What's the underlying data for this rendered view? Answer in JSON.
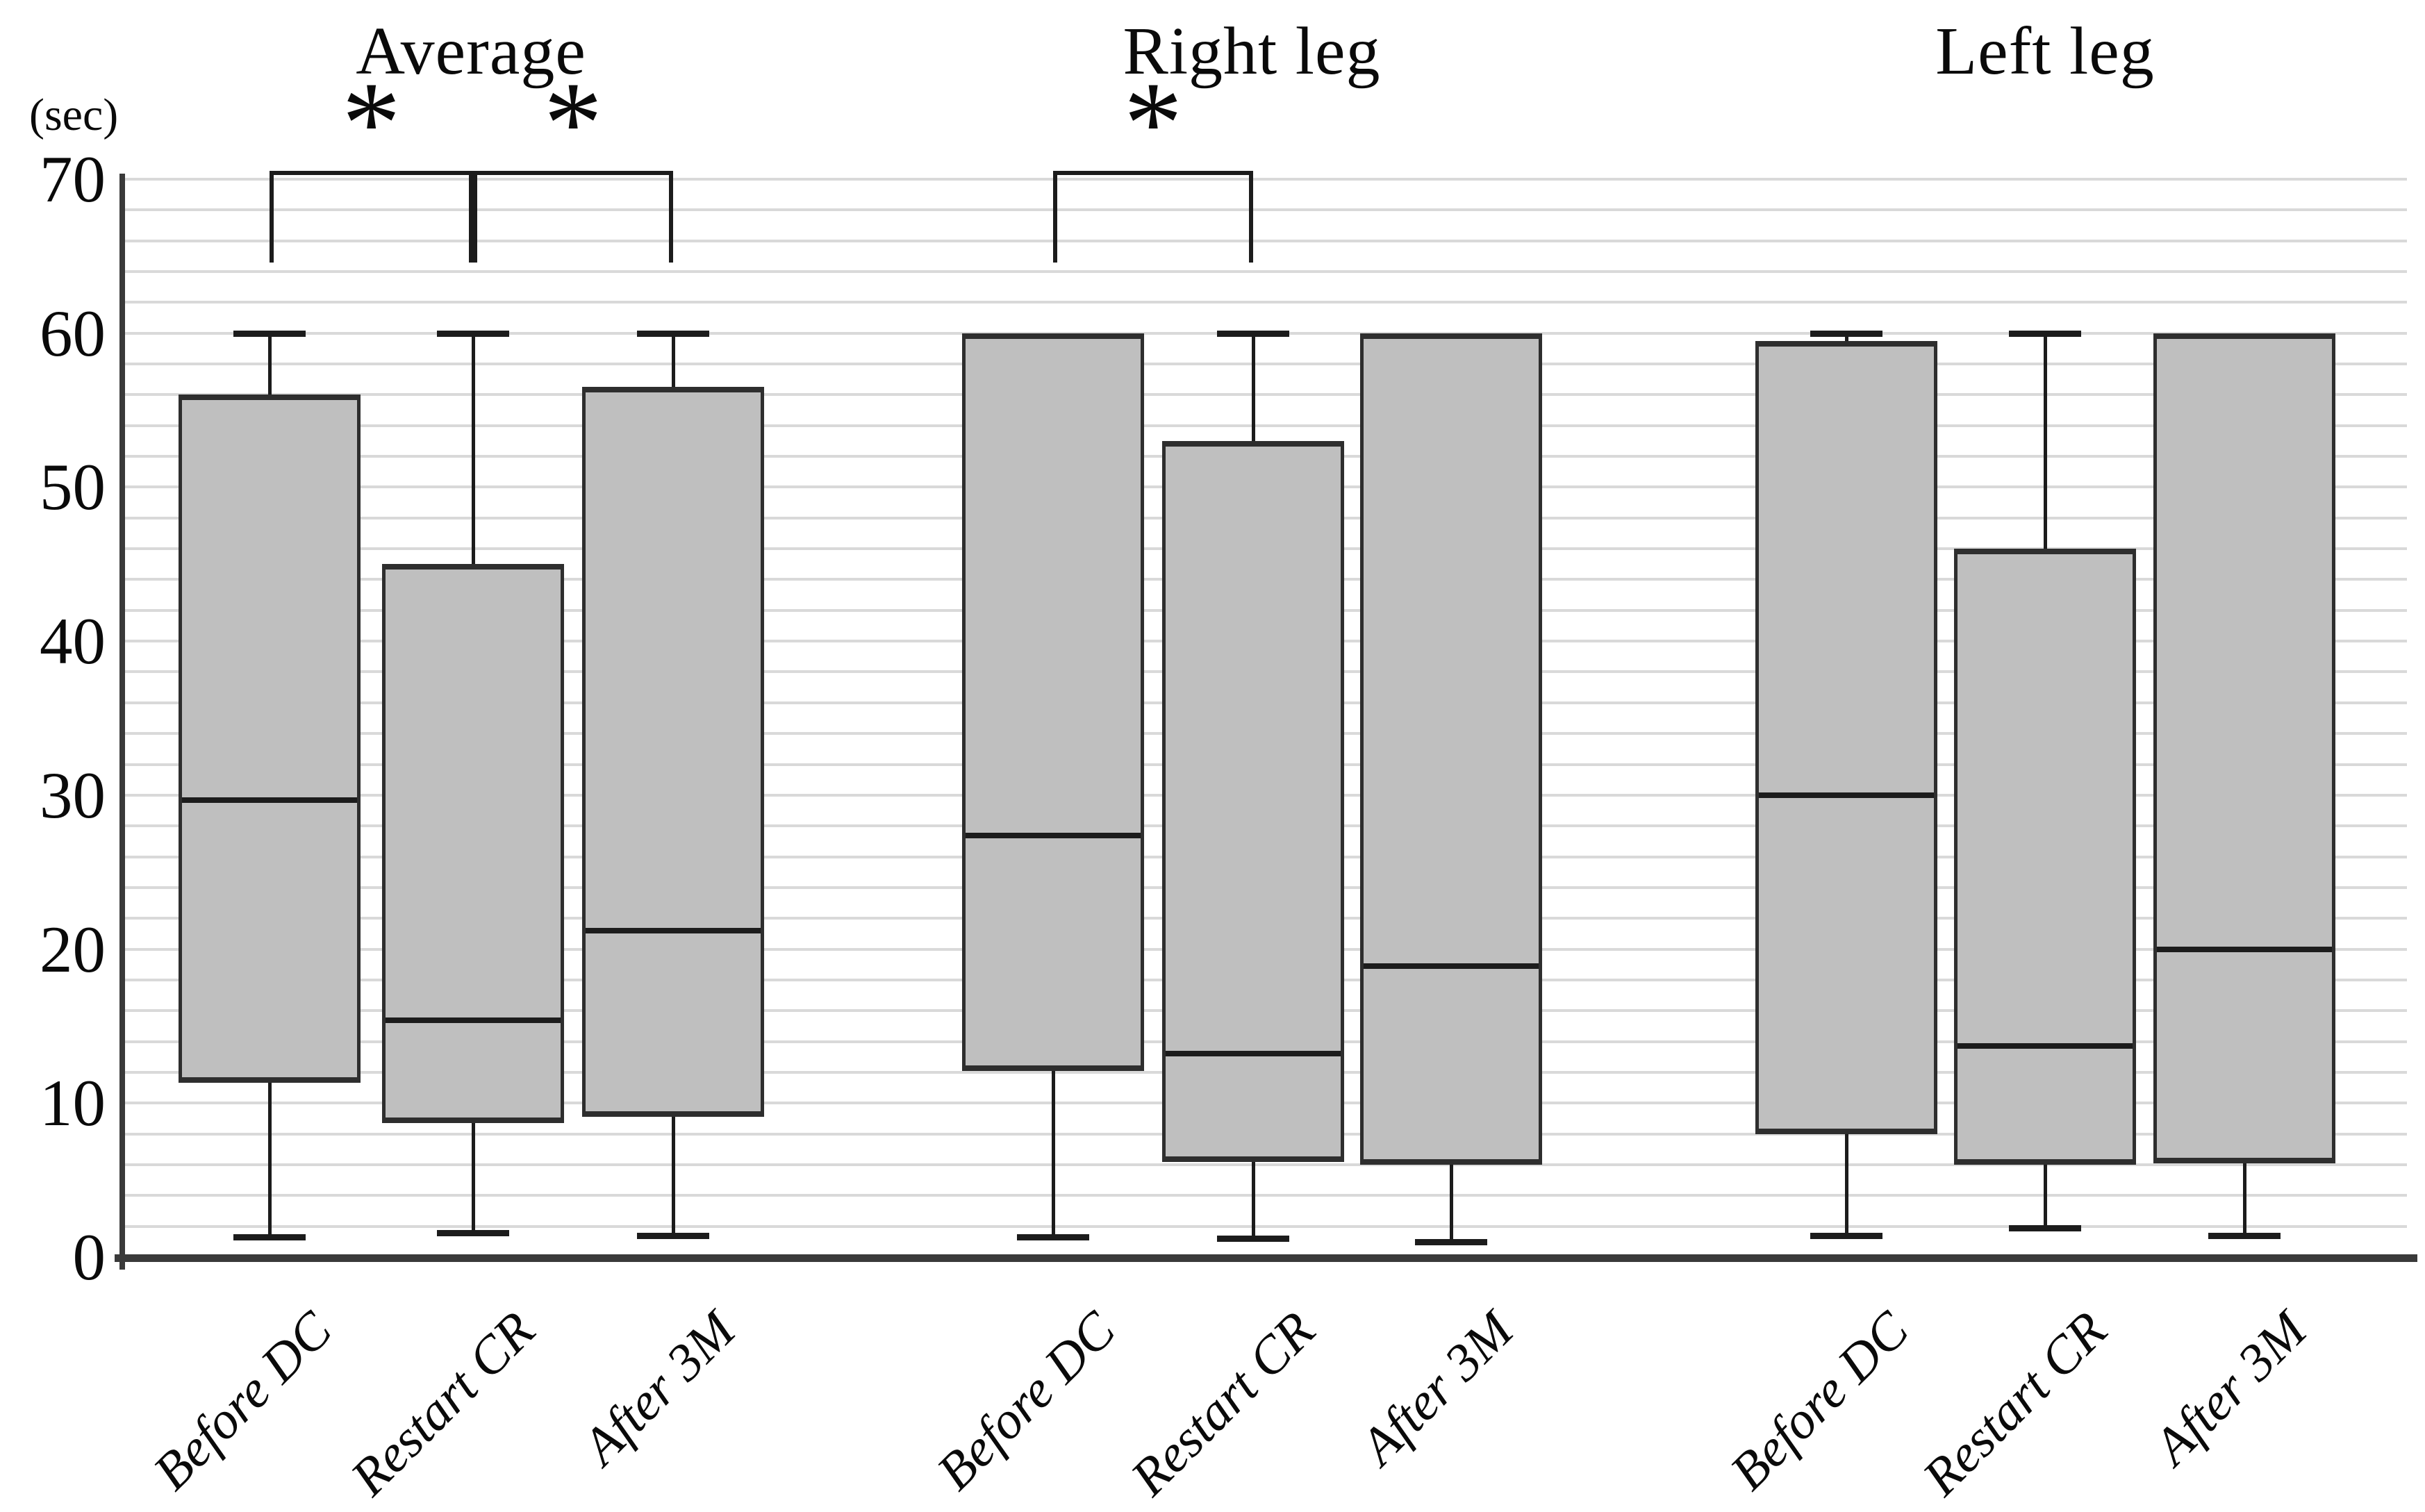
{
  "chart_data": {
    "type": "boxplot",
    "unit_label": "(sec)",
    "ylabel": "",
    "xlabel": "",
    "ylim": [
      0,
      70
    ],
    "yticks": [
      0,
      10,
      20,
      30,
      40,
      50,
      60,
      70
    ],
    "minor_gridline_step": 2,
    "grid": "on",
    "categories": [
      "Before DC",
      "Restart CR",
      "After 3M"
    ],
    "groups": [
      {
        "title": "Average",
        "boxes": [
          {
            "label": "Before DC",
            "whisker_high": 60,
            "q3": 56.0,
            "median": 29.7,
            "q1": 11.3,
            "whisker_low": 1.3
          },
          {
            "label": "Restart CR",
            "whisker_high": 60,
            "q3": 45.0,
            "median": 15.4,
            "q1": 8.7,
            "whisker_low": 1.6
          },
          {
            "label": "After 3M",
            "whisker_high": 60,
            "q3": 56.5,
            "median": 21.2,
            "q1": 9.1,
            "whisker_low": 1.4
          }
        ]
      },
      {
        "title": "Right leg",
        "boxes": [
          {
            "label": "Before DC",
            "whisker_high": 60,
            "q3": 60.0,
            "median": 27.4,
            "q1": 12.1,
            "whisker_low": 1.3
          },
          {
            "label": "Restart CR",
            "whisker_high": 60,
            "q3": 53.0,
            "median": 13.2,
            "q1": 6.2,
            "whisker_low": 1.2
          },
          {
            "label": "After 3M",
            "whisker_high": 60,
            "q3": 60.0,
            "median": 18.9,
            "q1": 6.0,
            "whisker_low": 1.0
          }
        ]
      },
      {
        "title": "Left leg",
        "boxes": [
          {
            "label": "Before DC",
            "whisker_high": 60,
            "q3": 59.5,
            "median": 30.0,
            "q1": 8.0,
            "whisker_low": 1.4
          },
          {
            "label": "Restart CR",
            "whisker_high": 60,
            "q3": 46.0,
            "median": 13.7,
            "q1": 6.0,
            "whisker_low": 1.9
          },
          {
            "label": "After 3M",
            "whisker_high": 60,
            "q3": 60.0,
            "median": 20.0,
            "q1": 6.1,
            "whisker_low": 1.4
          }
        ]
      }
    ],
    "significance_brackets": [
      {
        "group_index": 0,
        "from_index": 0,
        "to_index": 1,
        "label": "*"
      },
      {
        "group_index": 0,
        "from_index": 1,
        "to_index": 2,
        "label": "*"
      },
      {
        "group_index": 1,
        "from_index": 0,
        "to_index": 1,
        "label": "*"
      }
    ],
    "colors": {
      "box_fill": "#bfbfbf",
      "box_border": "#2e2e2e",
      "median": "#1c1c1c",
      "whisker": "#1c1c1c",
      "gridline": "#d9d9d9",
      "axis": "#3a3a3a",
      "background": "#ffffff",
      "text": "#0a0a0a"
    }
  }
}
